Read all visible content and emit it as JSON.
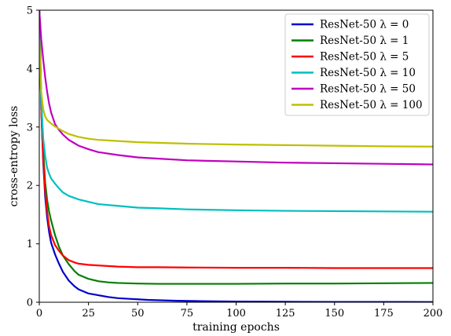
{
  "chart_data": {
    "type": "line",
    "title": "",
    "xlabel": "training epochs",
    "ylabel": "cross-entropy loss",
    "xlim": [
      0,
      200
    ],
    "ylim": [
      0,
      5
    ],
    "xticks": [
      0,
      25,
      50,
      75,
      100,
      125,
      150,
      175,
      200
    ],
    "yticks": [
      0,
      1,
      2,
      3,
      4,
      5
    ],
    "grid": false,
    "legend_position": "top-right",
    "series": [
      {
        "name": "ResNet-50 λ = 0",
        "color": "#0000cc",
        "x": [
          0,
          1,
          2,
          3,
          4,
          5,
          6,
          8,
          10,
          12,
          15,
          18,
          20,
          25,
          30,
          35,
          40,
          45,
          50,
          55,
          60,
          70,
          80,
          90,
          100,
          125,
          150,
          175,
          200
        ],
        "y": [
          5.0,
          3.3,
          2.4,
          1.8,
          1.45,
          1.2,
          1.02,
          0.82,
          0.66,
          0.52,
          0.37,
          0.27,
          0.22,
          0.15,
          0.12,
          0.09,
          0.07,
          0.06,
          0.05,
          0.04,
          0.035,
          0.025,
          0.02,
          0.015,
          0.012,
          0.008,
          0.006,
          0.005,
          0.004
        ]
      },
      {
        "name": "ResNet-50 λ = 1",
        "color": "#007f00",
        "x": [
          0,
          1,
          2,
          3,
          4,
          5,
          6,
          8,
          10,
          12,
          15,
          18,
          20,
          25,
          30,
          35,
          40,
          50,
          60,
          75,
          100,
          125,
          150,
          175,
          200
        ],
        "y": [
          5.0,
          3.5,
          2.6,
          2.05,
          1.75,
          1.55,
          1.4,
          1.15,
          0.95,
          0.8,
          0.65,
          0.53,
          0.47,
          0.4,
          0.36,
          0.34,
          0.33,
          0.32,
          0.315,
          0.315,
          0.315,
          0.32,
          0.32,
          0.325,
          0.33
        ]
      },
      {
        "name": "ResNet-50 λ = 5",
        "color": "#ff0000",
        "x": [
          0,
          1,
          2,
          3,
          4,
          5,
          6,
          8,
          10,
          12,
          15,
          18,
          20,
          25,
          30,
          40,
          50,
          60,
          75,
          100,
          125,
          150,
          175,
          200
        ],
        "y": [
          5.0,
          3.3,
          2.45,
          1.9,
          1.55,
          1.3,
          1.15,
          0.98,
          0.88,
          0.8,
          0.72,
          0.68,
          0.66,
          0.64,
          0.63,
          0.61,
          0.6,
          0.6,
          0.595,
          0.59,
          0.59,
          0.585,
          0.585,
          0.585
        ]
      },
      {
        "name": "ResNet-50 λ = 10",
        "color": "#00bfbf",
        "x": [
          0,
          1,
          2,
          3,
          4,
          5,
          6,
          8,
          10,
          12,
          15,
          20,
          25,
          30,
          40,
          50,
          60,
          75,
          100,
          125,
          150,
          175,
          200
        ],
        "y": [
          4.8,
          3.4,
          2.8,
          2.5,
          2.3,
          2.2,
          2.12,
          2.03,
          1.95,
          1.88,
          1.82,
          1.76,
          1.72,
          1.68,
          1.65,
          1.62,
          1.61,
          1.59,
          1.575,
          1.565,
          1.56,
          1.555,
          1.55
        ]
      },
      {
        "name": "ResNet-50 λ = 50",
        "color": "#bf00bf",
        "x": [
          0,
          1,
          2,
          3,
          4,
          5,
          6,
          8,
          10,
          12,
          15,
          18,
          20,
          25,
          30,
          40,
          50,
          60,
          75,
          100,
          125,
          150,
          175,
          200
        ],
        "y": [
          5.0,
          4.5,
          4.15,
          3.85,
          3.6,
          3.4,
          3.25,
          3.05,
          2.95,
          2.87,
          2.78,
          2.72,
          2.68,
          2.62,
          2.57,
          2.52,
          2.48,
          2.46,
          2.43,
          2.41,
          2.39,
          2.38,
          2.37,
          2.36
        ]
      },
      {
        "name": "ResNet-50 λ = 100",
        "color": "#bfbf00",
        "x": [
          0,
          1,
          2,
          3,
          4,
          5,
          6,
          8,
          10,
          12,
          15,
          20,
          25,
          30,
          40,
          50,
          60,
          75,
          100,
          125,
          150,
          175,
          200
        ],
        "y": [
          4.5,
          3.6,
          3.3,
          3.18,
          3.12,
          3.09,
          3.06,
          3.01,
          2.97,
          2.93,
          2.88,
          2.83,
          2.8,
          2.78,
          2.76,
          2.74,
          2.73,
          2.715,
          2.7,
          2.69,
          2.68,
          2.67,
          2.665
        ]
      }
    ]
  }
}
